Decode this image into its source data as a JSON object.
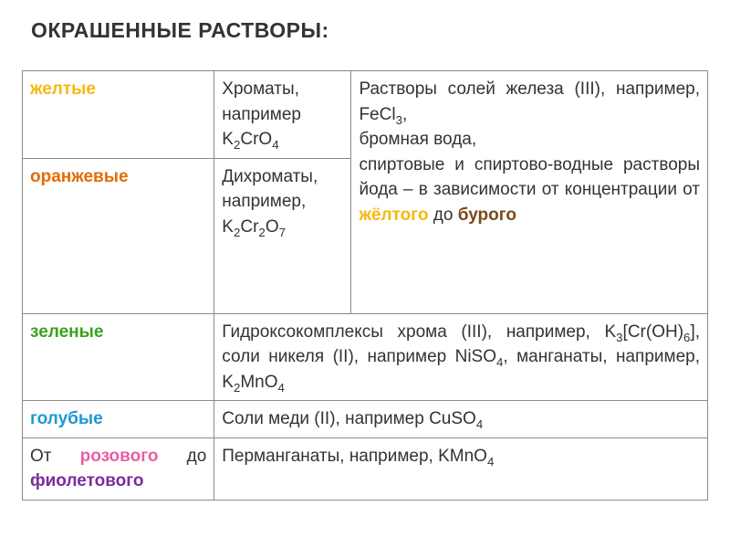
{
  "title": "ОКРАШЕННЫЕ РАСТВОРЫ:",
  "colors": {
    "yellow": "#f5b80e",
    "orange": "#e66b00",
    "green": "#3aa21d",
    "blue": "#1f97d6",
    "pink": "#e85fa2",
    "purple": "#7a2d9e",
    "brown": "#7a4a18",
    "border": "#8a8a8a",
    "text": "#333333",
    "background": "#ffffff"
  },
  "typography": {
    "font_family": "Arial",
    "title_fontsize": 23,
    "cell_fontsize": 19,
    "line_height": 1.45
  },
  "table": {
    "column_widths_pct": [
      28,
      20,
      52
    ],
    "rows": [
      {
        "color_label": "желтые",
        "color_key": "yellow",
        "mid": {
          "text_before": "Хроматы, например ",
          "formula": "K2CrO4",
          "formula_html": "K<sub>2</sub>CrO<sub>4</sub>"
        },
        "right_shared": {
          "line1_before": "Растворы солей железа (III), например, ",
          "line1_formula": "FeCl3",
          "line1_formula_html": "FeCl<sub>3</sub>",
          "line1_after": ",",
          "line2": "бромная вода,",
          "line3_before": "спиртовые и спиртово-водные растворы йода – в зависимости от концентрации от ",
          "line3_yellow_word": "жёлтого",
          "line3_mid": " до ",
          "line3_brown_word": "бурого"
        }
      },
      {
        "color_label": "оранжевые",
        "color_key": "orange",
        "mid": {
          "text_before": "Дихроматы, например, ",
          "formula": "K2Cr2O7",
          "formula_html": "K<sub>2</sub>Cr<sub>2</sub>O<sub>7</sub>"
        }
      },
      {
        "color_label": "зеленые",
        "color_key": "green",
        "wide": {
          "p1_before": "Гидроксокомплексы хрома (III), например, ",
          "p1_formula1": "K3[Cr(OH)6]",
          "p1_formula1_html": "K<sub>3</sub>[Cr(OH)<sub>6</sub>]",
          "p1_mid": ", соли никеля (II), например ",
          "p1_formula2": "NiSO4",
          "p1_formula2_html": "NiSO<sub>4</sub>",
          "p1_after_before_formula3": ", манганаты, например, ",
          "p1_formula3": "K2MnO4",
          "p1_formula3_html": "K<sub>2</sub>MnO<sub>4</sub>"
        }
      },
      {
        "color_label": "голубые",
        "color_key": "blue",
        "wide": {
          "text_before": "Соли меди (II), например ",
          "formula": "CuSO4",
          "formula_html": "CuSO<sub>4</sub>"
        }
      },
      {
        "color_label_prefix": "От ",
        "color_label_pink": "розового",
        "color_label_mid": " до ",
        "color_label_purple": "фиолетового",
        "wide": {
          "text_before": "Перманганаты, например, ",
          "formula": "KMnO4",
          "formula_html": "KMnO<sub>4</sub>"
        }
      }
    ]
  }
}
